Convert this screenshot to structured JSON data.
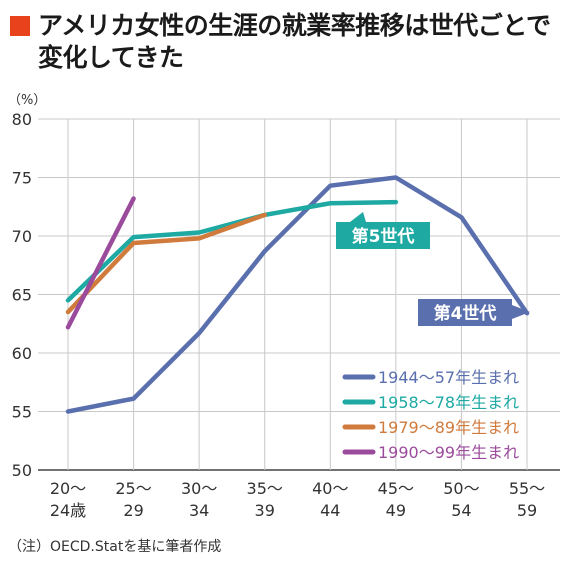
{
  "header": {
    "title": "アメリカ女性の生涯の就業率推移は世代ごとで変化してきた"
  },
  "note": "（注）OECD.Statを基に筆者作成",
  "colors": {
    "title_mark": "#e8421c",
    "grid": "#c8c8c8",
    "axis": "#444444"
  },
  "chart_data": {
    "type": "line",
    "ylabel": "（%）",
    "ylim": [
      50,
      80
    ],
    "yticks": [
      50,
      55,
      60,
      65,
      70,
      75,
      80
    ],
    "grid": true,
    "legend_position": "bottom-right",
    "categories": [
      [
        "20〜",
        "24歳"
      ],
      [
        "25〜",
        "29"
      ],
      [
        "30〜",
        "34"
      ],
      [
        "35〜",
        "39"
      ],
      [
        "40〜",
        "44"
      ],
      [
        "45〜",
        "49"
      ],
      [
        "50〜",
        "54"
      ],
      [
        "55〜",
        "59"
      ]
    ],
    "series": [
      {
        "name": "1944〜57年生まれ",
        "color": "#5a6fae",
        "values": [
          55.0,
          56.1,
          61.7,
          68.7,
          74.3,
          75.0,
          71.6,
          63.4
        ]
      },
      {
        "name": "1958〜78年生まれ",
        "color": "#1ea9a3",
        "values": [
          64.5,
          69.9,
          70.3,
          71.8,
          72.8,
          72.9,
          null,
          null
        ]
      },
      {
        "name": "1979〜89年生まれ",
        "color": "#d07a3c",
        "values": [
          63.5,
          69.4,
          69.8,
          71.8,
          null,
          null,
          null,
          null
        ]
      },
      {
        "name": "1990〜99年生まれ",
        "color": "#9b4b9b",
        "values": [
          62.2,
          73.2,
          null,
          null,
          null,
          null,
          null,
          null
        ]
      }
    ],
    "annotations": [
      {
        "text": "第5世代",
        "series": 1,
        "color": "#1ea9a3"
      },
      {
        "text": "第4世代",
        "series": 0,
        "color": "#5a6fae"
      }
    ]
  }
}
